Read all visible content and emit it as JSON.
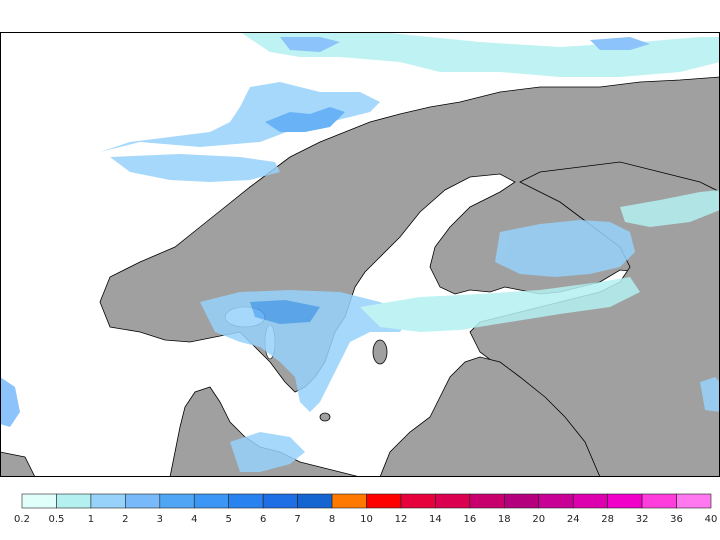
{
  "map": {
    "region": "Scandinavia and Baltic Sea",
    "background_sea": "#ffffff",
    "land_color": "#a0a0a0",
    "coast_color": "#000000"
  },
  "colorbar": {
    "labels": [
      "0.2",
      "0.5",
      "1",
      "2",
      "3",
      "4",
      "5",
      "6",
      "7",
      "8",
      "10",
      "12",
      "14",
      "16",
      "18",
      "20",
      "24",
      "28",
      "32",
      "36",
      "40"
    ],
    "colors": [
      "#e0fffb",
      "#b4f0f0",
      "#96d2fa",
      "#78b9fa",
      "#50a5f5",
      "#3c96f5",
      "#2882f0",
      "#1e6ee6",
      "#1464d2",
      "#ff7800",
      "#ff0000",
      "#e6003c",
      "#dc0050",
      "#c8006e",
      "#b4007d",
      "#c80096",
      "#dc00af",
      "#f000c8",
      "#ff3cdc",
      "#ff78f0"
    ]
  }
}
